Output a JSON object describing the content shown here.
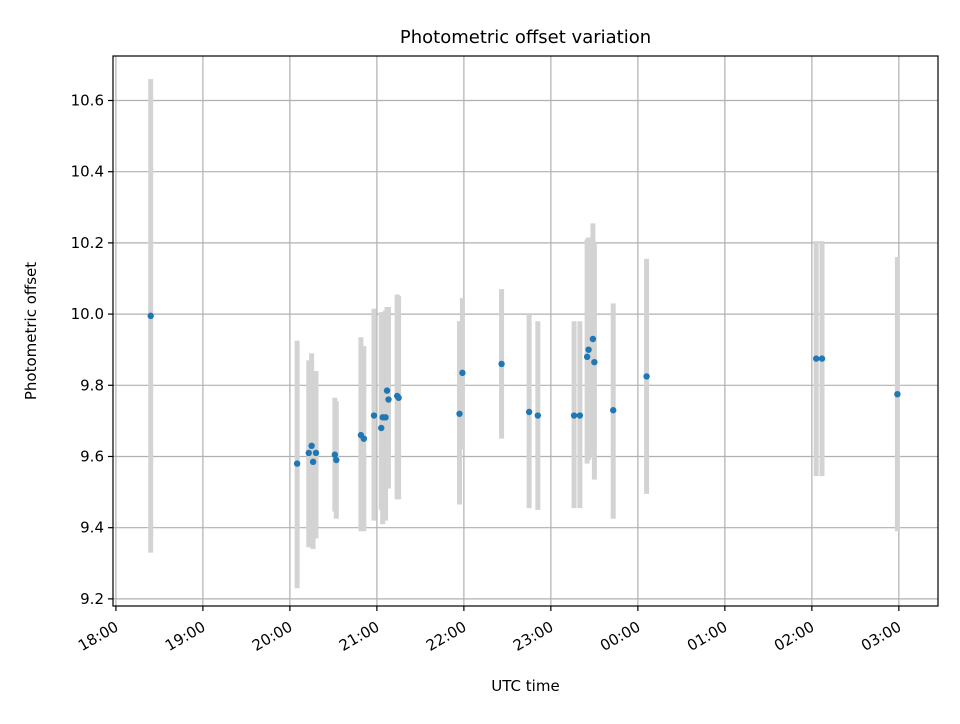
{
  "chart_data": {
    "type": "scatter",
    "title": "Photometric offset variation",
    "xlabel": "UTC time",
    "ylabel": "Photometric offset",
    "xlim": [
      "17:58",
      "03:27"
    ],
    "ylim": [
      9.18,
      10.725
    ],
    "grid": true,
    "x_ticks": [
      "18:00",
      "19:00",
      "20:00",
      "21:00",
      "22:00",
      "23:00",
      "00:00",
      "01:00",
      "02:00",
      "03:00"
    ],
    "y_ticks": [
      "9.2",
      "9.4",
      "9.6",
      "9.8",
      "10.0",
      "10.2",
      "10.4",
      "10.6"
    ],
    "colors": {
      "marker": "#1f77b4",
      "errorbar": "#d3d3d3",
      "grid": "#b0b0b0"
    },
    "points": [
      {
        "x": "18:24",
        "y": 9.995,
        "ylo": 9.33,
        "yhi": 10.66
      },
      {
        "x": "20:05",
        "y": 9.58,
        "ylo": 9.23,
        "yhi": 9.925
      },
      {
        "x": "20:13",
        "y": 9.61,
        "ylo": 9.345,
        "yhi": 9.87
      },
      {
        "x": "20:15",
        "y": 9.63,
        "ylo": 9.36,
        "yhi": 9.89
      },
      {
        "x": "20:16",
        "y": 9.585,
        "ylo": 9.34,
        "yhi": 9.84
      },
      {
        "x": "20:18",
        "y": 9.61,
        "ylo": 9.37,
        "yhi": 9.84
      },
      {
        "x": "20:31",
        "y": 9.605,
        "ylo": 9.445,
        "yhi": 9.765
      },
      {
        "x": "20:32",
        "y": 9.59,
        "ylo": 9.425,
        "yhi": 9.755
      },
      {
        "x": "20:49",
        "y": 9.66,
        "ylo": 9.39,
        "yhi": 9.935
      },
      {
        "x": "20:51",
        "y": 9.65,
        "ylo": 9.39,
        "yhi": 9.91
      },
      {
        "x": "20:58",
        "y": 9.715,
        "ylo": 9.42,
        "yhi": 10.015
      },
      {
        "x": "21:03",
        "y": 9.68,
        "ylo": 9.45,
        "yhi": 10.005
      },
      {
        "x": "21:04",
        "y": 9.71,
        "ylo": 9.41,
        "yhi": 10.005
      },
      {
        "x": "21:06",
        "y": 9.71,
        "ylo": 9.42,
        "yhi": 10.01
      },
      {
        "x": "21:07",
        "y": 9.785,
        "ylo": 9.51,
        "yhi": 10.02
      },
      {
        "x": "21:08",
        "y": 9.76,
        "ylo": 9.51,
        "yhi": 10.02
      },
      {
        "x": "21:14",
        "y": 9.77,
        "ylo": 9.48,
        "yhi": 10.055
      },
      {
        "x": "21:15",
        "y": 9.765,
        "ylo": 9.48,
        "yhi": 10.05
      },
      {
        "x": "21:57",
        "y": 9.72,
        "ylo": 9.465,
        "yhi": 9.98
      },
      {
        "x": "21:59",
        "y": 9.835,
        "ylo": 9.62,
        "yhi": 10.045
      },
      {
        "x": "22:26",
        "y": 9.86,
        "ylo": 9.65,
        "yhi": 10.07
      },
      {
        "x": "22:45",
        "y": 9.725,
        "ylo": 9.455,
        "yhi": 10.0
      },
      {
        "x": "22:51",
        "y": 9.715,
        "ylo": 9.45,
        "yhi": 9.98
      },
      {
        "x": "23:16",
        "y": 9.715,
        "ylo": 9.455,
        "yhi": 9.98
      },
      {
        "x": "23:20",
        "y": 9.715,
        "ylo": 9.455,
        "yhi": 9.98
      },
      {
        "x": "23:25",
        "y": 9.88,
        "ylo": 9.58,
        "yhi": 10.21
      },
      {
        "x": "23:26",
        "y": 9.9,
        "ylo": 9.59,
        "yhi": 10.215
      },
      {
        "x": "23:29",
        "y": 9.93,
        "ylo": 9.6,
        "yhi": 10.255
      },
      {
        "x": "23:30",
        "y": 9.865,
        "ylo": 9.535,
        "yhi": 10.2
      },
      {
        "x": "23:43",
        "y": 9.73,
        "ylo": 9.425,
        "yhi": 10.03
      },
      {
        "x": "00:06",
        "y": 9.825,
        "ylo": 9.495,
        "yhi": 10.155
      },
      {
        "x": "02:03",
        "y": 9.875,
        "ylo": 9.545,
        "yhi": 10.205
      },
      {
        "x": "02:07",
        "y": 9.875,
        "ylo": 9.545,
        "yhi": 10.205
      },
      {
        "x": "02:59",
        "y": 9.775,
        "ylo": 9.39,
        "yhi": 10.16
      }
    ]
  }
}
